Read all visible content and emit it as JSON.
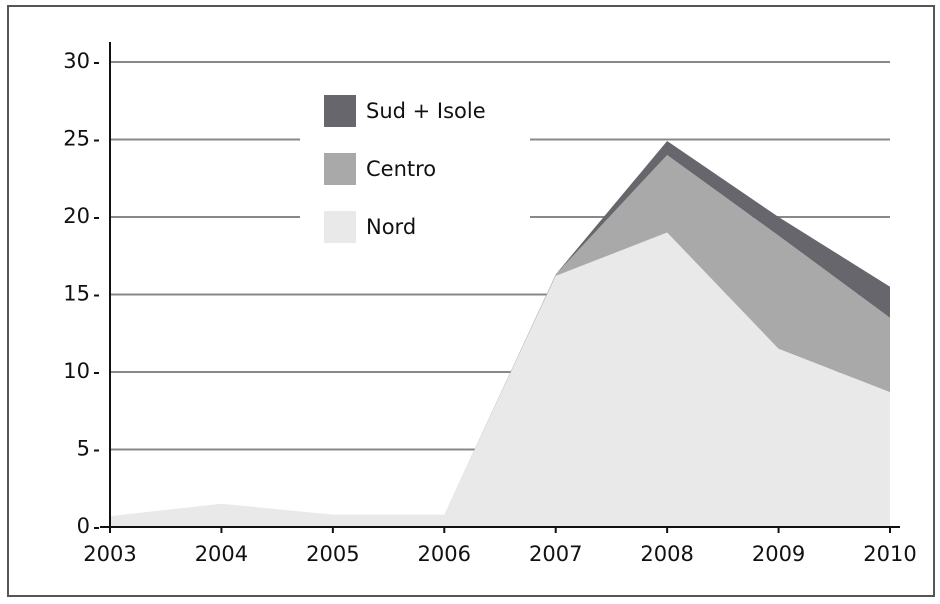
{
  "chart_data": {
    "type": "stacked_area",
    "categories": [
      "2003",
      "2004",
      "2005",
      "2006",
      "2007",
      "2008",
      "2009",
      "2010"
    ],
    "series": [
      {
        "name": "Nord",
        "color": "#e9e9e9",
        "values": [
          0.7,
          1.5,
          0.8,
          0.8,
          16.2,
          19,
          11.5,
          8.7
        ]
      },
      {
        "name": "Centro",
        "color": "#a9a9a9",
        "values": [
          0,
          0,
          0,
          0,
          0.1,
          5,
          7.3,
          4.8
        ]
      },
      {
        "name": "Sud + Isole",
        "color": "#66666c",
        "values": [
          0,
          0,
          0,
          0,
          0,
          0.9,
          1.2,
          2
        ]
      }
    ],
    "ylim": [
      0,
      30
    ],
    "yticks": [
      0,
      5,
      10,
      15,
      20,
      25,
      30
    ],
    "grid": true,
    "legend": "upper left"
  }
}
